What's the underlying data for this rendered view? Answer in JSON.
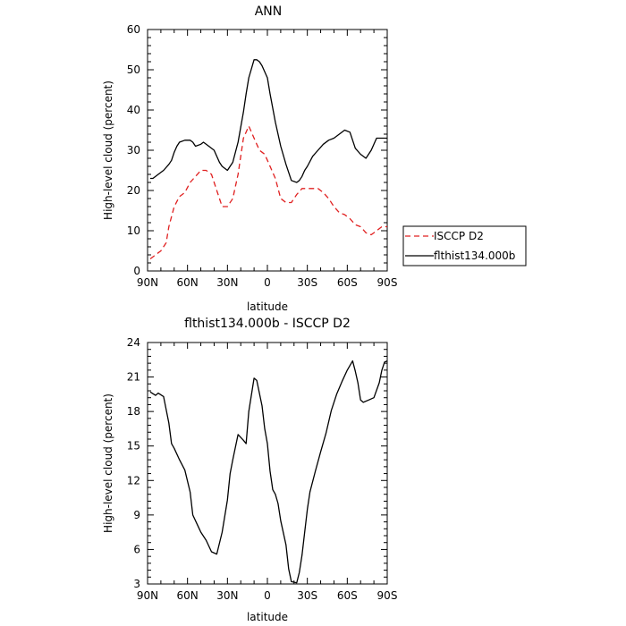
{
  "chart_data": [
    {
      "type": "line",
      "title": "ANN",
      "xlabel": "latitude",
      "ylabel": "High-level cloud (percent)",
      "xlim": [
        -90,
        90
      ],
      "ylim": [
        0,
        60
      ],
      "x_ticks": [
        -90,
        -60,
        -30,
        0,
        30,
        60,
        90
      ],
      "x_tick_labels": [
        "90N",
        "60N",
        "30N",
        "0",
        "30S",
        "60S",
        "90S"
      ],
      "y_ticks": [
        0,
        10,
        20,
        30,
        40,
        50,
        60
      ],
      "y_tick_labels": [
        "0",
        "10",
        "20",
        "30",
        "40",
        "50",
        "60"
      ],
      "legend": "outside-right",
      "series": [
        {
          "name": "ISCCP D2",
          "color": "#e02020",
          "dash": "dashed",
          "x": [
            -88,
            -84,
            -80,
            -76,
            -74,
            -70,
            -66,
            -62,
            -58,
            -54,
            -50,
            -46,
            -42,
            -38,
            -34,
            -30,
            -26,
            -22,
            -18,
            -14,
            -10,
            -6,
            -2,
            2,
            6,
            10,
            14,
            18,
            22,
            26,
            30,
            34,
            38,
            42,
            46,
            50,
            54,
            58,
            62,
            66,
            70,
            74,
            78,
            82,
            86,
            90
          ],
          "y": [
            3,
            4,
            5,
            7,
            11,
            16,
            18.5,
            19.5,
            22,
            23.5,
            25,
            25,
            24,
            20,
            16,
            16,
            18,
            24,
            33,
            36,
            33,
            30,
            29,
            26,
            23,
            18,
            17,
            17,
            19,
            20.5,
            20.5,
            20.5,
            20.5,
            19.5,
            18,
            16,
            14.5,
            14,
            13,
            11.5,
            11,
            9.5,
            9,
            10,
            11,
            11
          ]
        },
        {
          "name": "flthist134.000b",
          "color": "#000000",
          "dash": "solid",
          "x": [
            -88,
            -86,
            -82,
            -78,
            -74,
            -72,
            -70,
            -68,
            -66,
            -62,
            -58,
            -56,
            -54,
            -50,
            -48,
            -44,
            -40,
            -36,
            -34,
            -30,
            -26,
            -22,
            -18,
            -16,
            -14,
            -10,
            -8,
            -6,
            -4,
            -2,
            0,
            2,
            6,
            10,
            14,
            18,
            22,
            24,
            26,
            28,
            30,
            34,
            38,
            42,
            46,
            50,
            54,
            58,
            62,
            66,
            70,
            74,
            78,
            82,
            86,
            90
          ],
          "y": [
            23,
            23,
            24,
            25,
            26.5,
            27.5,
            29.5,
            31,
            32,
            32.5,
            32.5,
            32,
            31,
            31.5,
            32,
            31,
            30,
            27,
            26,
            25,
            27,
            32,
            39.5,
            44,
            48,
            52.5,
            52.5,
            52,
            51,
            49.5,
            48,
            44,
            37,
            31,
            26.5,
            22.5,
            22,
            22.5,
            23.5,
            25,
            26,
            28.5,
            30,
            31.5,
            32.5,
            33,
            34,
            35,
            34.5,
            30.5,
            29,
            28,
            30,
            33,
            33,
            33
          ]
        }
      ]
    },
    {
      "type": "line",
      "title": "flthist134.000b - ISCCP D2",
      "xlabel": "latitude",
      "ylabel": "High-level cloud (percent)",
      "xlim": [
        -90,
        90
      ],
      "ylim": [
        3,
        24
      ],
      "x_ticks": [
        -90,
        -60,
        -30,
        0,
        30,
        60,
        90
      ],
      "x_tick_labels": [
        "90N",
        "60N",
        "30N",
        "0",
        "30S",
        "60S",
        "90S"
      ],
      "y_ticks": [
        3,
        6,
        9,
        12,
        15,
        18,
        21,
        24
      ],
      "y_tick_labels": [
        "3",
        "6",
        "9",
        "12",
        "15",
        "18",
        "21",
        "24"
      ],
      "series": [
        {
          "color": "#000000",
          "dash": "solid",
          "x": [
            -88,
            -84,
            -82,
            -78,
            -74,
            -72,
            -70,
            -66,
            -62,
            -58,
            -56,
            -52,
            -50,
            -46,
            -42,
            -38,
            -34,
            -30,
            -28,
            -26,
            -22,
            -18,
            -16,
            -14,
            -10,
            -8,
            -4,
            -2,
            0,
            2,
            4,
            6,
            8,
            10,
            14,
            16,
            18,
            22,
            24,
            26,
            28,
            30,
            32,
            36,
            40,
            44,
            48,
            52,
            56,
            60,
            64,
            66,
            68,
            70,
            72,
            76,
            80,
            84,
            86,
            88,
            90
          ],
          "y": [
            19.7,
            19.4,
            19.6,
            19.3,
            17,
            15.2,
            14.8,
            13.8,
            12.9,
            11,
            9,
            8,
            7.5,
            6.8,
            5.8,
            5.6,
            7.5,
            10.3,
            12.6,
            13.8,
            16,
            15.5,
            15.2,
            18,
            20.9,
            20.7,
            18.5,
            16.5,
            15.2,
            12.8,
            11.2,
            10.8,
            10,
            8.5,
            6.4,
            4.3,
            3.2,
            3.1,
            4,
            5.5,
            7.5,
            9.5,
            11,
            12.8,
            14.5,
            16.1,
            18.1,
            19.5,
            20.6,
            21.6,
            22.4,
            21.5,
            20.5,
            19,
            18.8,
            19,
            19.2,
            20.5,
            21.6,
            22.3,
            22.4
          ]
        }
      ]
    }
  ]
}
